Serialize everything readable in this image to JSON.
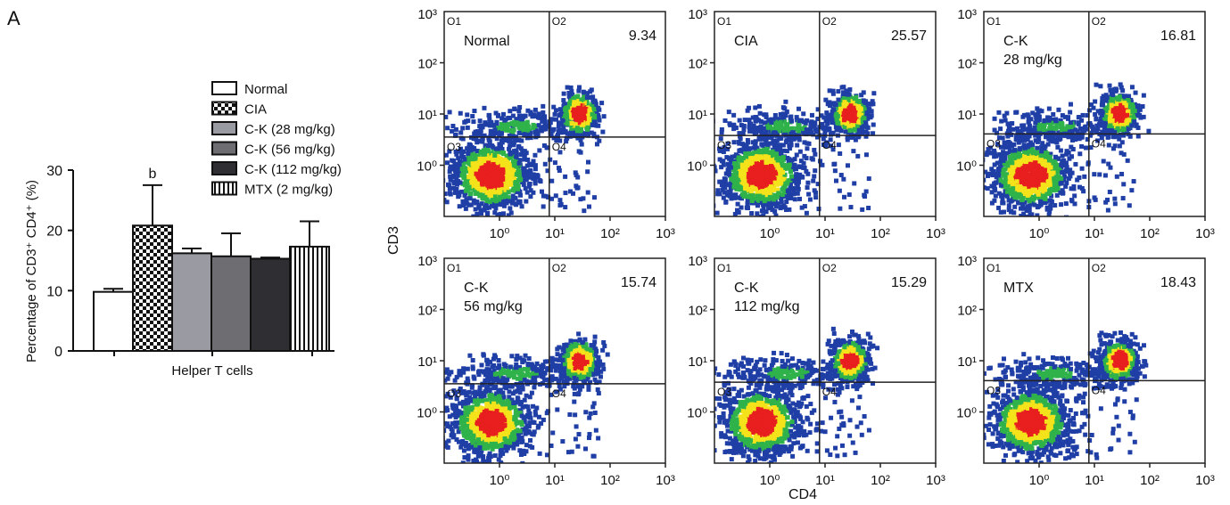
{
  "panel_label": "A",
  "chart_data": [
    {
      "type": "bar",
      "ylabel": "Percentage of CD3⁺ CD4⁺ (%)",
      "xlabel": "Helper T cells",
      "ylim": [
        0,
        30
      ],
      "yticks": [
        "0",
        "10",
        "20",
        "30"
      ],
      "categories": [
        "Normal",
        "CIA",
        "C-K (28 mg/kg)",
        "C-K (56 mg/kg)",
        "C-K (112 mg/kg)",
        "MTX (2 mg/kg)"
      ],
      "values": [
        9.8,
        20.8,
        16.2,
        15.7,
        15.3,
        17.3
      ],
      "errors": [
        0.5,
        6.7,
        0.8,
        3.8,
        0.2,
        4.2
      ],
      "bar_styles": [
        "white",
        "checker",
        "#9a9aa2",
        "#6d6d72",
        "#2f2f33",
        "vstripe"
      ],
      "annotations": [
        {
          "category": "CIA",
          "text": "b"
        }
      ],
      "legend": [
        "Normal",
        "CIA",
        "C-K (28 mg/kg)",
        "C-K (56 mg/kg)",
        "C-K (112 mg/kg)",
        "MTX (2 mg/kg)"
      ]
    },
    {
      "type": "scatter",
      "xlabel": "CD4",
      "ylabel": "CD3",
      "scale": "log",
      "tick_labels": [
        "10⁰",
        "10¹",
        "10²",
        "10³"
      ],
      "quadrant_labels": [
        "O1",
        "O2",
        "O3",
        "O4"
      ],
      "colors": {
        "low": "#1f3fa6",
        "mid": "#2fb24a",
        "high": "#f4e21a",
        "core": "#e81f1f"
      },
      "panels": [
        {
          "label": [
            "Normal"
          ],
          "value": "9.34"
        },
        {
          "label": [
            "CIA"
          ],
          "value": "25.57"
        },
        {
          "label": [
            "C-K",
            "28 mg/kg"
          ],
          "value": "16.81"
        },
        {
          "label": [
            "C-K",
            "56 mg/kg"
          ],
          "value": "15.74"
        },
        {
          "label": [
            "C-K",
            "112 mg/kg"
          ],
          "value": "15.29"
        },
        {
          "label": [
            "MTX"
          ],
          "value": "18.43"
        }
      ]
    }
  ]
}
